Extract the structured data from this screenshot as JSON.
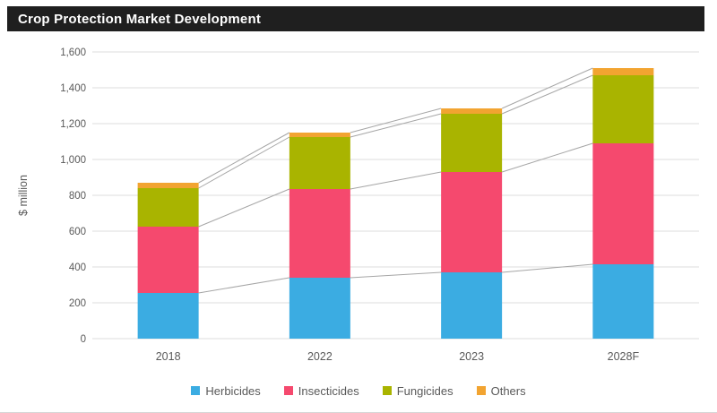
{
  "header": {
    "title": "Crop Protection Market Development"
  },
  "chart_data": {
    "type": "bar",
    "stacked": true,
    "title": "Crop Protection Market Development",
    "categories": [
      "2018",
      "2022",
      "2023",
      "2028F"
    ],
    "series": [
      {
        "name": "Herbicides",
        "color": "#3BACE2",
        "values": [
          255,
          340,
          370,
          415
        ]
      },
      {
        "name": "Insecticides",
        "color": "#F5496E",
        "values": [
          370,
          495,
          560,
          675
        ]
      },
      {
        "name": "Fungicides",
        "color": "#A9B400",
        "values": [
          215,
          290,
          325,
          380
        ]
      },
      {
        "name": "Others",
        "color": "#F2A431",
        "values": [
          30,
          25,
          30,
          40
        ]
      }
    ],
    "stack_totals": [
      870,
      1150,
      1285,
      1510
    ],
    "ylabel": "$ million",
    "ylim": [
      0,
      1600
    ],
    "ytick_step": 200,
    "yticks": [
      {
        "v": 0,
        "label": "0"
      },
      {
        "v": 200,
        "label": "200"
      },
      {
        "v": 400,
        "label": "400"
      },
      {
        "v": 600,
        "label": "600"
      },
      {
        "v": 800,
        "label": "800"
      },
      {
        "v": 1000,
        "label": "1,000"
      },
      {
        "v": 1200,
        "label": "1,200"
      },
      {
        "v": 1400,
        "label": "1,400"
      },
      {
        "v": 1600,
        "label": "1,600"
      }
    ],
    "grid": true,
    "legend_position": "bottom",
    "connector_lines": true,
    "style_colors": {
      "title_bg": "#1F1F1F",
      "title_text": "#FFFFFF",
      "gridline": "#DCDCDC",
      "connector": "#A6A6A6",
      "axis_text": "#595959"
    }
  }
}
